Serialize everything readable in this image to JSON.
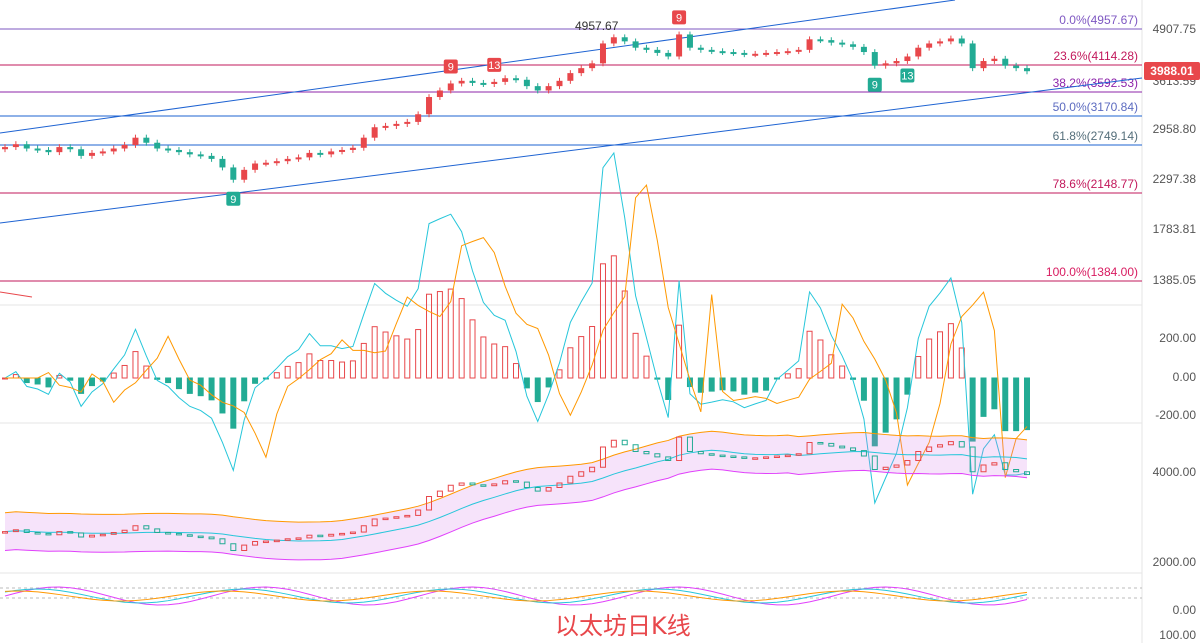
{
  "caption": "以太坊日K线",
  "current_price_label": "3988.01",
  "colors": {
    "up": "#e8474b",
    "down": "#22ab94",
    "fib": "#9c27b0",
    "trend": "#1e63d2"
  },
  "chart_data": [
    {
      "type": "candlestick",
      "title": "",
      "y_axis_ticks": [
        "4907.75",
        "3613.59",
        "2958.80",
        "2297.38",
        "1783.81",
        "1385.05"
      ],
      "fib_levels": [
        {
          "label": "0.0%(4957.67)",
          "price": 4957.67
        },
        {
          "label": "23.6%(4114.28)",
          "price": 4114.28
        },
        {
          "label": "38.2%(3592.53)",
          "price": 3592.53
        },
        {
          "label": "50.0%(3170.84)",
          "price": 3170.84
        },
        {
          "label": "61.8%(2749.14)",
          "price": 2749.14
        },
        {
          "label": "78.6%(2148.77)",
          "price": 2148.77
        },
        {
          "label": "100.0%(1384.00)",
          "price": 1384.0
        }
      ],
      "high_annotation": "4957.67",
      "td_markers": [
        "9",
        "13",
        "9",
        "9",
        "13",
        "9"
      ],
      "close": [
        2720,
        2760,
        2700,
        2680,
        2650,
        2720,
        2690,
        2600,
        2640,
        2660,
        2700,
        2750,
        2850,
        2780,
        2700,
        2680,
        2650,
        2620,
        2600,
        2560,
        2450,
        2300,
        2420,
        2500,
        2510,
        2530,
        2560,
        2580,
        2640,
        2620,
        2660,
        2680,
        2710,
        2850,
        3000,
        3020,
        3050,
        3080,
        3200,
        3500,
        3620,
        3750,
        3800,
        3760,
        3740,
        3780,
        3850,
        3820,
        3700,
        3620,
        3700,
        3800,
        3950,
        4050,
        4150,
        4600,
        4750,
        4650,
        4500,
        4450,
        4380,
        4300,
        4820,
        4500,
        4450,
        4420,
        4400,
        4380,
        4350,
        4360,
        4380,
        4400,
        4420,
        4450,
        4700,
        4680,
        4620,
        4580,
        4520,
        4400,
        4100,
        4150,
        4200,
        4300,
        4500,
        4600,
        4650,
        4720,
        4600,
        4050,
        4200,
        4250,
        4100,
        4050,
        3988
      ],
      "macd_ticks": [
        "200.00",
        "0.00",
        "-200.00"
      ],
      "boll_ticks": [
        "4000.00",
        "2000.00"
      ],
      "kdj_ticks": [
        "0.00",
        "100.00"
      ]
    }
  ]
}
